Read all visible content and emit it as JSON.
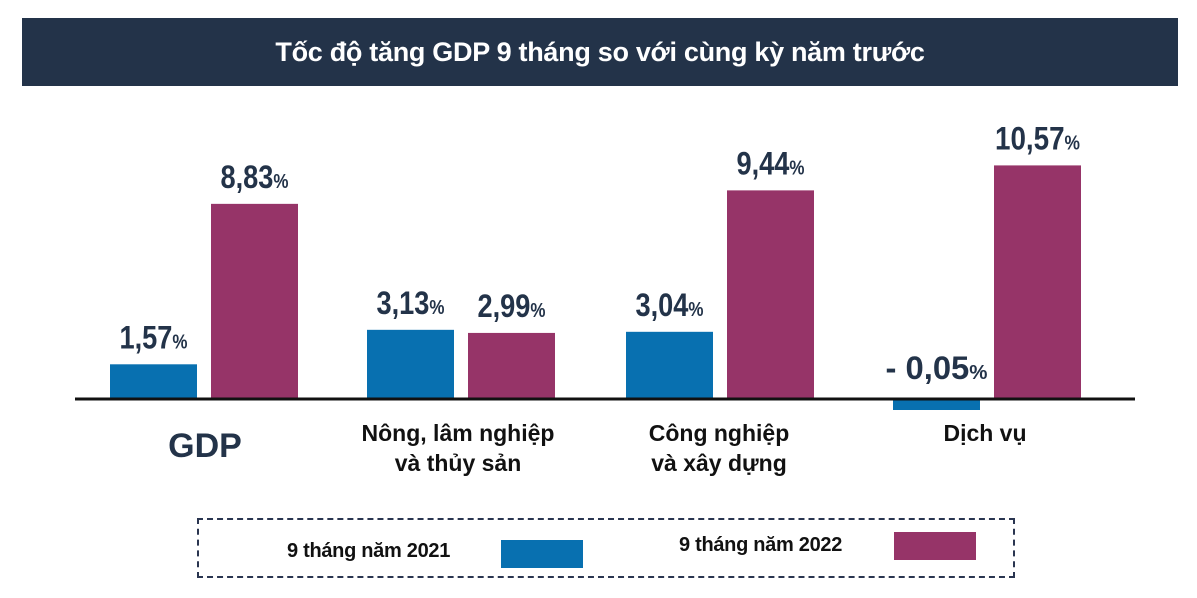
{
  "chart_data": {
    "type": "bar",
    "title": "Tốc độ tăng GDP 9 tháng so với cùng kỳ năm trước",
    "categories": [
      "GDP",
      "Nông, lâm nghiệp\nvà thủy sản",
      "Công nghiệp\nvà xây dựng",
      "Dịch vụ"
    ],
    "series": [
      {
        "name": "9 tháng năm 2021",
        "color": "#0870B0",
        "values": [
          1.57,
          3.13,
          3.04,
          -0.05
        ],
        "labels": [
          "1,57",
          "3,13",
          "3,04",
          "- 0,05"
        ]
      },
      {
        "name": "9 tháng năm 2022",
        "color": "#963468",
        "values": [
          8.83,
          2.99,
          9.44,
          10.57
        ],
        "labels": [
          "8,83",
          "2,99",
          "9,44",
          "10,57"
        ]
      }
    ],
    "unit": "%",
    "grid": false,
    "legend_placement": "bottom"
  }
}
